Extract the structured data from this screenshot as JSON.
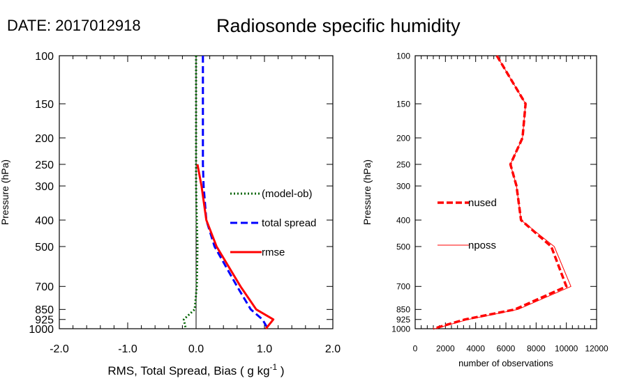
{
  "header": {
    "date_label": "DATE: 2017012918",
    "title": "Radiosonde specific humidity"
  },
  "chart_data": [
    {
      "type": "line",
      "panel": "left",
      "title": "",
      "xlabel": "RMS, Total Spread, Bias ( g kg",
      "xlabel_sup": "-1",
      "xlabel_end": " )",
      "ylabel": "Pressure (hPa)",
      "xlim": [
        -2.0,
        2.0
      ],
      "ylim": [
        1000,
        100
      ],
      "y_scale": "log",
      "x_ticks": [
        -2.0,
        -1.0,
        0.0,
        1.0,
        2.0
      ],
      "x_tick_labels": [
        "-2.0",
        "-1.0",
        "0.0",
        "1.0",
        "2.0"
      ],
      "y_ticks": [
        100,
        150,
        200,
        250,
        300,
        400,
        500,
        700,
        850,
        925,
        1000
      ],
      "y_tick_labels": [
        "100",
        "150",
        "200",
        "250",
        "300",
        "400",
        "500",
        "700",
        "850",
        "925",
        "1000"
      ],
      "zero_line": true,
      "legend_placement": "right-middle",
      "series": [
        {
          "name": "(model-ob)",
          "color": "#006400",
          "style": "dotted",
          "points": [
            [
              0.0,
              100
            ],
            [
              0.0,
              150
            ],
            [
              0.0,
              200
            ],
            [
              0.0,
              250
            ],
            [
              0.0,
              300
            ],
            [
              0.01,
              400
            ],
            [
              0.02,
              500
            ],
            [
              0.01,
              700
            ],
            [
              -0.02,
              850
            ],
            [
              -0.18,
              925
            ],
            [
              -0.15,
              1000
            ]
          ]
        },
        {
          "name": "total spread",
          "color": "#0000ff",
          "style": "dashed",
          "points": [
            [
              0.1,
              100
            ],
            [
              0.1,
              150
            ],
            [
              0.1,
              200
            ],
            [
              0.1,
              250
            ],
            [
              0.11,
              300
            ],
            [
              0.15,
              400
            ],
            [
              0.27,
              500
            ],
            [
              0.6,
              700
            ],
            [
              0.8,
              850
            ],
            [
              0.97,
              925
            ],
            [
              1.05,
              1000
            ]
          ]
        },
        {
          "name": "rmse",
          "color": "#ff0000",
          "style": "solid",
          "points": [
            [
              0.02,
              250
            ],
            [
              0.08,
              300
            ],
            [
              0.15,
              400
            ],
            [
              0.3,
              500
            ],
            [
              0.65,
              700
            ],
            [
              0.88,
              850
            ],
            [
              1.13,
              925
            ],
            [
              1.02,
              1000
            ]
          ]
        }
      ]
    },
    {
      "type": "line",
      "panel": "right",
      "title": "",
      "xlabel": "number of observations",
      "ylabel": "Pressure (hPa)",
      "xlim": [
        0,
        12000
      ],
      "ylim": [
        1000,
        100
      ],
      "y_scale": "log",
      "x_ticks": [
        0,
        2000,
        4000,
        6000,
        8000,
        10000,
        12000
      ],
      "x_tick_labels": [
        "0",
        "2000",
        "4000",
        "6000",
        "8000",
        "10000",
        "12000"
      ],
      "y_ticks": [
        100,
        150,
        200,
        250,
        300,
        400,
        500,
        700,
        850,
        925,
        1000
      ],
      "y_tick_labels": [
        "100",
        "150",
        "200",
        "250",
        "300",
        "400",
        "500",
        "700",
        "850",
        "925",
        "1000"
      ],
      "legend_placement": "left-middle",
      "series": [
        {
          "name": "nused",
          "color": "#ff0000",
          "style": "dashed-thick",
          "points": [
            [
              5400,
              100
            ],
            [
              7300,
              150
            ],
            [
              7100,
              200
            ],
            [
              6300,
              250
            ],
            [
              6700,
              300
            ],
            [
              7000,
              400
            ],
            [
              9000,
              500
            ],
            [
              10000,
              700
            ],
            [
              6600,
              850
            ],
            [
              3300,
              925
            ],
            [
              1200,
              1000
            ]
          ]
        },
        {
          "name": "nposs",
          "color": "#ff0000",
          "style": "thin",
          "points": [
            [
              5400,
              100
            ],
            [
              7300,
              150
            ],
            [
              7100,
              200
            ],
            [
              6300,
              250
            ],
            [
              6700,
              300
            ],
            [
              7000,
              400
            ],
            [
              9200,
              500
            ],
            [
              10300,
              700
            ],
            [
              6800,
              850
            ],
            [
              3500,
              925
            ],
            [
              1300,
              1000
            ]
          ]
        }
      ]
    }
  ]
}
